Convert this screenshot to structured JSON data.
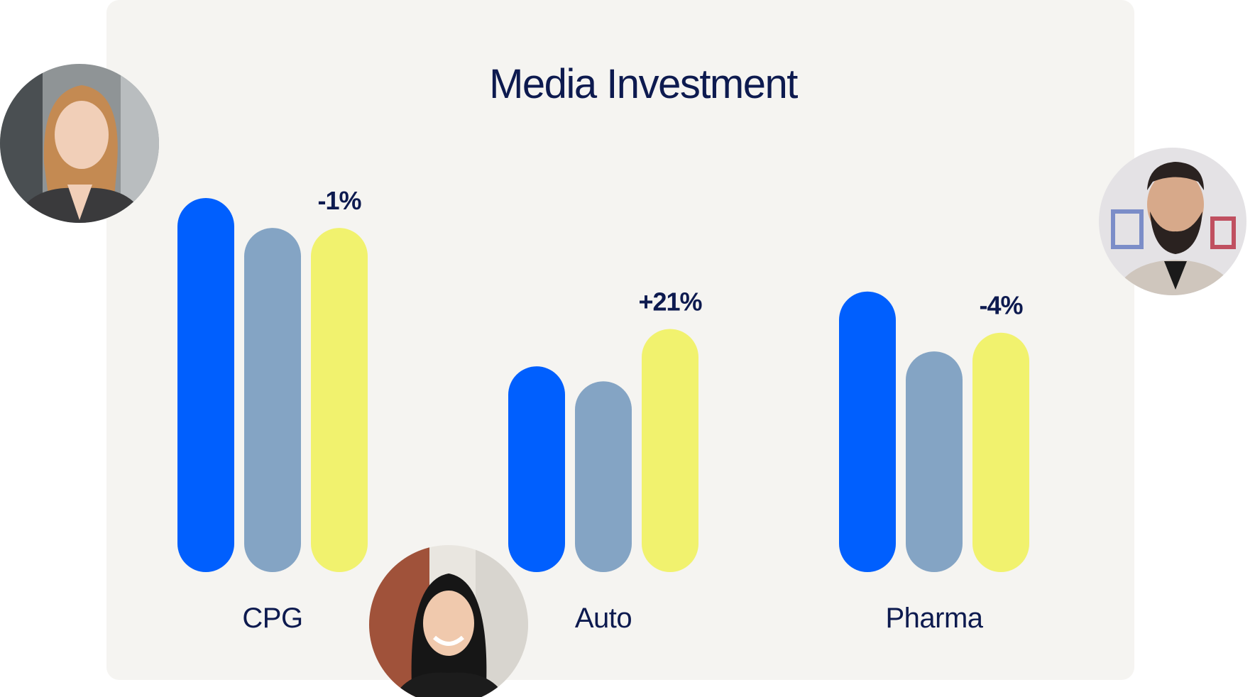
{
  "chart_data": {
    "type": "bar",
    "title": "Media Investment",
    "xlabel": "",
    "ylabel": "",
    "ylim": [
      0,
      100
    ],
    "grid": false,
    "legend": "none",
    "categories": [
      "CPG",
      "Auto",
      "Pharma"
    ],
    "series": [
      {
        "values": [
          100,
          55,
          75
        ]
      },
      {
        "values": [
          92,
          51,
          59
        ]
      },
      {
        "values": [
          92,
          65,
          64
        ]
      }
    ],
    "data_labels": [
      "-1%",
      "+21%",
      "-4%"
    ]
  },
  "colors": {
    "series": [
      "#005ffe",
      "#84a4c4",
      "#f1f26e"
    ],
    "card": "#f5f4f1",
    "text": "#0d1a4f"
  },
  "avatars": [
    {
      "name": "woman-blonde-portrait"
    },
    {
      "name": "woman-dark-hair-portrait"
    },
    {
      "name": "man-bearded-portrait"
    }
  ]
}
